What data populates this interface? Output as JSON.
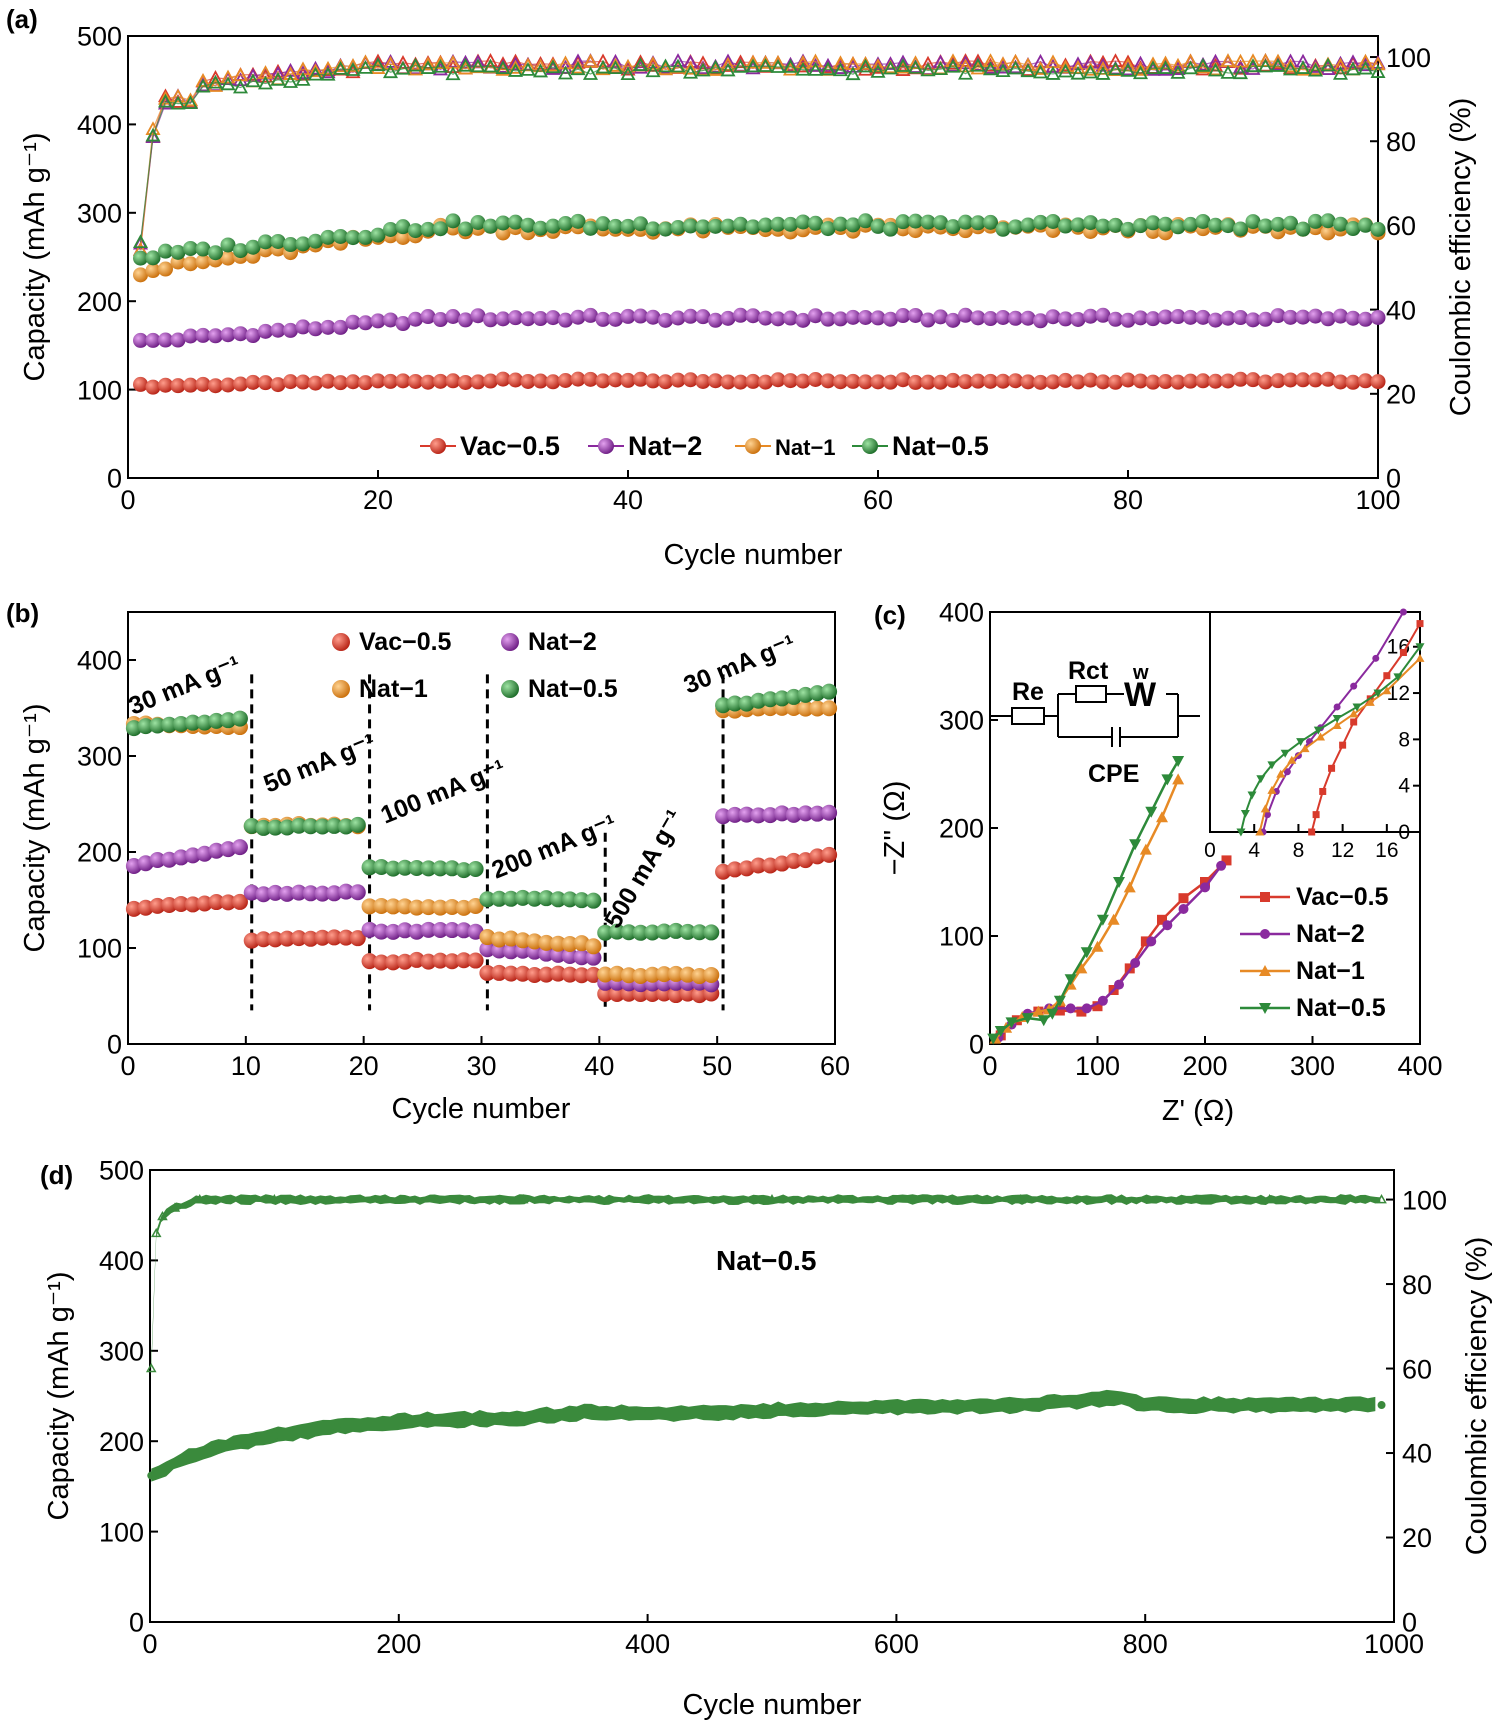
{
  "panels": {
    "a": {
      "label": "(a)"
    },
    "b": {
      "label": "(b)"
    },
    "c": {
      "label": "(c)"
    },
    "d": {
      "label": "(d)"
    }
  },
  "chart_data": [
    {
      "id": "a",
      "type": "scatter",
      "title": "",
      "xlabel": "Cycle number",
      "ylabel": "Capacity (mAh g⁻¹)",
      "y2label": "Coulombic efficiency (%)",
      "xlim": [
        0,
        100
      ],
      "ylim": [
        0,
        500
      ],
      "y2lim": [
        0,
        105
      ],
      "xticks": [
        0,
        20,
        40,
        60,
        80,
        100
      ],
      "yticks": [
        0,
        100,
        200,
        300,
        400,
        500
      ],
      "y2ticks": [
        0,
        20,
        40,
        60,
        80,
        100
      ],
      "legend_position": "bottom-center",
      "series": [
        {
          "name": "Vac−0.5",
          "color": "#d83a2c",
          "capacity_start": 104,
          "capacity_plateau": 110,
          "ce_plateau": 98
        },
        {
          "name": "Nat−2",
          "color": "#8a2a9e",
          "capacity_start": 153,
          "capacity_plateau": 181,
          "ce_plateau": 98
        },
        {
          "name": "Nat−1",
          "color": "#e78a25",
          "capacity_start": 232,
          "capacity_plateau": 282,
          "ce_plateau": 98
        },
        {
          "name": "Nat−0.5",
          "color": "#2d8a3a",
          "capacity_start": 248,
          "capacity_plateau": 286,
          "ce_plateau": 97
        }
      ]
    },
    {
      "id": "b",
      "type": "scatter",
      "title": "",
      "xlabel": "Cycle number",
      "ylabel": "Capacity (mAh g⁻¹)",
      "xlim": [
        0,
        60
      ],
      "ylim": [
        0,
        450
      ],
      "xticks": [
        0,
        10,
        20,
        30,
        40,
        50,
        60
      ],
      "yticks": [
        0,
        100,
        200,
        300,
        400
      ],
      "legend_position": "top-center",
      "rates": [
        "30 mA g⁻¹",
        "50 mA g⁻¹",
        "100 mA g⁻¹",
        "200 mA g⁻¹",
        "500 mA g⁻¹",
        "30 mA g⁻¹"
      ],
      "rate_boundaries": [
        10.5,
        20.5,
        30.5,
        40.5,
        50.5
      ],
      "series": [
        {
          "name": "Vac−0.5",
          "color": "#d83a2c",
          "segments": [
            [
              142,
              148
            ],
            [
              108,
              111
            ],
            [
              86,
              87
            ],
            [
              73,
              72
            ],
            [
              51,
              52
            ],
            [
              180,
              196
            ]
          ]
        },
        {
          "name": "Nat−2",
          "color": "#8a2a9e",
          "segments": [
            [
              186,
              206
            ],
            [
              157,
              158
            ],
            [
              118,
              118
            ],
            [
              99,
              90
            ],
            [
              63,
              63
            ],
            [
              238,
              240
            ]
          ]
        },
        {
          "name": "Nat−1",
          "color": "#e78a25",
          "segments": [
            [
              333,
              331
            ],
            [
              228,
              228
            ],
            [
              143,
              143
            ],
            [
              111,
              103
            ],
            [
              72,
              72
            ],
            [
              348,
              350
            ]
          ]
        },
        {
          "name": "Nat−0.5",
          "color": "#2d8a3a",
          "segments": [
            [
              329,
              339
            ],
            [
              226,
              228
            ],
            [
              184,
              182
            ],
            [
              152,
              150
            ],
            [
              117,
              117
            ],
            [
              352,
              368
            ]
          ]
        }
      ]
    },
    {
      "id": "c",
      "type": "line",
      "title": "",
      "xlabel": "Z' (Ω)",
      "ylabel": "−Z'' (Ω)",
      "xlim": [
        0,
        400
      ],
      "ylim": [
        0,
        400
      ],
      "xticks": [
        0,
        100,
        200,
        300,
        400
      ],
      "yticks": [
        0,
        100,
        200,
        300,
        400
      ],
      "legend_position": "lower-right",
      "circuit_labels": {
        "re": "Re",
        "rct": "Rct",
        "w": "w",
        "w_symbol": "W",
        "cpe": "CPE"
      },
      "inset": {
        "xlim": [
          0,
          19
        ],
        "ylim": [
          0,
          19
        ],
        "xticks": [
          0,
          4,
          8,
          12,
          16
        ],
        "yticks": [
          0,
          4,
          8,
          12,
          16
        ]
      },
      "series": [
        {
          "name": "Vac−0.5",
          "color": "#d83a2c",
          "marker": "square",
          "x": [
            10,
            25,
            45,
            65,
            85,
            100,
            115,
            130,
            145,
            160,
            180,
            200,
            220
          ],
          "y": [
            8,
            22,
            30,
            31,
            30,
            35,
            50,
            70,
            95,
            115,
            135,
            150,
            170
          ],
          "inset_x": [
            9.2,
            9.6,
            10.2,
            11,
            12,
            13,
            14.5,
            16,
            17.5,
            19
          ],
          "inset_y": [
            0,
            1.5,
            3.5,
            5.5,
            7.5,
            9.5,
            11.5,
            13.5,
            15.5,
            18
          ]
        },
        {
          "name": "Nat−2",
          "color": "#8a2a9e",
          "marker": "circle",
          "x": [
            8,
            20,
            35,
            55,
            75,
            90,
            105,
            120,
            135,
            150,
            165,
            180,
            200,
            215
          ],
          "y": [
            6,
            18,
            28,
            33,
            33,
            33,
            40,
            55,
            75,
            95,
            110,
            125,
            145,
            165
          ],
          "inset_x": [
            4.8,
            5.2,
            6,
            7,
            8,
            9,
            10,
            11.5,
            13,
            15,
            17.5
          ],
          "inset_y": [
            0,
            1.5,
            3.5,
            5.2,
            6.6,
            7.8,
            9,
            10.8,
            12.6,
            15,
            19
          ]
        },
        {
          "name": "Nat−1",
          "color": "#e78a25",
          "marker": "triangle-up",
          "x": [
            5,
            15,
            30,
            45,
            55,
            65,
            75,
            85,
            100,
            115,
            130,
            145,
            160,
            175
          ],
          "y": [
            5,
            15,
            25,
            30,
            32,
            40,
            55,
            70,
            90,
            115,
            145,
            180,
            210,
            245
          ],
          "inset_x": [
            4.5,
            5,
            5.6,
            6.4,
            7.4,
            8.6,
            10,
            11.5,
            13,
            14.5,
            16,
            19
          ],
          "inset_y": [
            0,
            2,
            3.6,
            5,
            6.2,
            7.2,
            8.2,
            9.2,
            10.2,
            11.2,
            12.2,
            15
          ]
        },
        {
          "name": "Nat−0.5",
          "color": "#2d8a3a",
          "marker": "triangle-down",
          "x": [
            3,
            10,
            20,
            35,
            50,
            58,
            65,
            75,
            90,
            105,
            120,
            135,
            150,
            165,
            175
          ],
          "y": [
            5,
            12,
            20,
            24,
            22,
            28,
            40,
            60,
            85,
            115,
            150,
            185,
            215,
            245,
            262
          ],
          "inset_x": [
            2.8,
            3.2,
            3.8,
            4.6,
            5.6,
            6.8,
            8.2,
            9.8,
            11.5,
            13.3,
            15.2,
            17,
            19
          ],
          "inset_y": [
            0,
            1.6,
            3.2,
            4.6,
            5.8,
            6.8,
            7.8,
            8.8,
            9.8,
            10.8,
            12,
            13.4,
            16
          ]
        }
      ]
    },
    {
      "id": "d",
      "type": "scatter",
      "title": "",
      "annotation": "Nat−0.5",
      "xlabel": "Cycle number",
      "ylabel": "Capacity (mAh g⁻¹)",
      "y2label": "Coulombic efficiency (%)",
      "xlim": [
        0,
        1000
      ],
      "ylim": [
        0,
        500
      ],
      "y2lim": [
        0,
        107
      ],
      "xticks": [
        0,
        200,
        400,
        600,
        800,
        1000
      ],
      "yticks": [
        0,
        100,
        200,
        300,
        400,
        500
      ],
      "y2ticks": [
        0,
        20,
        40,
        60,
        80,
        100
      ],
      "series": [
        {
          "name": "capacity",
          "color": "#3a8a3c",
          "x": [
            1,
            25,
            50,
            100,
            150,
            200,
            300,
            350,
            400,
            500,
            600,
            700,
            780,
            800,
            900,
            990
          ],
          "y": [
            162,
            180,
            192,
            206,
            216,
            222,
            226,
            232,
            230,
            234,
            238,
            240,
            248,
            240,
            240,
            240
          ]
        },
        {
          "name": "coulombic_efficiency",
          "color": "#3a8a3c",
          "x": [
            1,
            5,
            10,
            20,
            40,
            100,
            300,
            500,
            700,
            900,
            990
          ],
          "y": [
            60,
            92,
            96,
            98,
            100,
            100,
            100,
            100,
            100,
            100,
            100
          ]
        }
      ]
    }
  ]
}
